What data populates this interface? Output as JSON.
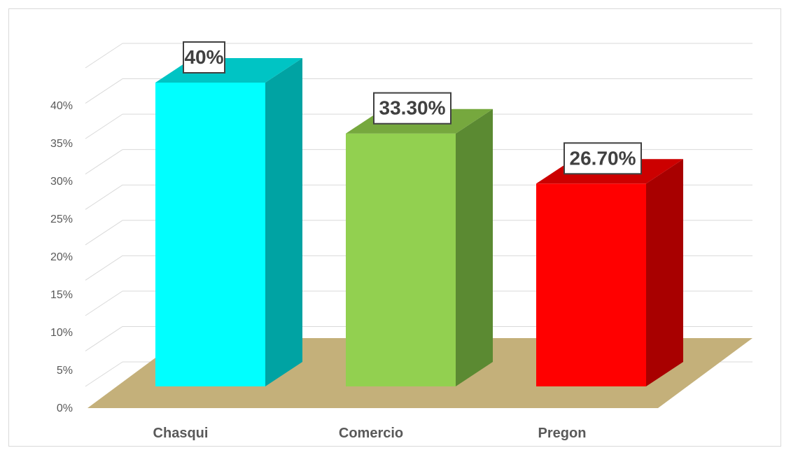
{
  "chart_data": {
    "type": "bar",
    "style": "3d-column",
    "categories": [
      "Chasqui",
      "Comercio",
      "Pregon"
    ],
    "values": [
      40,
      33.3,
      26.7
    ],
    "data_labels": [
      "40%",
      "33.30%",
      "26.70%"
    ],
    "y_ticks": [
      "0%",
      "5%",
      "10%",
      "15%",
      "20%",
      "25%",
      "30%",
      "35%",
      "40%"
    ],
    "y_tick_values": [
      0,
      5,
      10,
      15,
      20,
      25,
      30,
      35,
      40
    ],
    "ylim": [
      0,
      45
    ],
    "grid": true,
    "legend": "none",
    "colors": {
      "bars_front": [
        "#00ffff",
        "#92d050",
        "#ff0000"
      ],
      "bars_side": [
        "#00a3a3",
        "#5b8a32",
        "#a80000"
      ],
      "bars_top": [
        "#00c4c4",
        "#76a83e",
        "#cc0000"
      ],
      "floor": "#c4b07a",
      "gridline": "#d9d9d9",
      "axis_text": "#595959"
    }
  }
}
